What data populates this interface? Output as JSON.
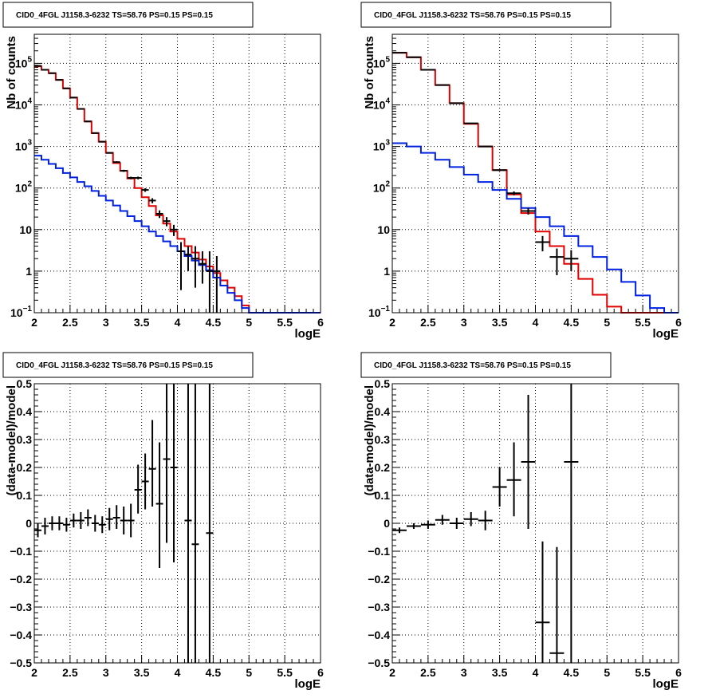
{
  "chart_data": [
    {
      "type": "line",
      "title": "CID0_4FGL J1158.3-6232 TS=58.76 PS=0.15 PS=0.15",
      "xlabel": "logE",
      "ylabel": "Nb of counts",
      "xlim": [
        2,
        6
      ],
      "ylim": [
        0.1,
        500000
      ],
      "yscale": "log",
      "grid": true,
      "xticks": [
        "2",
        "2.5",
        "3",
        "3.5",
        "4",
        "4.5",
        "5",
        "5.5",
        "6"
      ],
      "yticks": [
        {
          "v": 0.1,
          "base": "10",
          "exp": "−1"
        },
        {
          "v": 1,
          "label": "1"
        },
        {
          "v": 10,
          "label": "10"
        },
        {
          "v": 100,
          "base": "10",
          "exp": "2"
        },
        {
          "v": 1000,
          "base": "10",
          "exp": "3"
        },
        {
          "v": 10000,
          "base": "10",
          "exp": "4"
        },
        {
          "v": 100000,
          "base": "10",
          "exp": "5"
        }
      ],
      "series": [
        {
          "kind": "step",
          "color": "#e00000",
          "edges": [
            2,
            2.1,
            2.2,
            2.3,
            2.4,
            2.5,
            2.6,
            2.7,
            2.8,
            2.9,
            3.0,
            3.1,
            3.2,
            3.3,
            3.4,
            3.5,
            3.6,
            3.7,
            3.8,
            3.9,
            4.0,
            4.1,
            4.2,
            4.3,
            4.4,
            4.5,
            4.6,
            4.7,
            4.8,
            4.9,
            5.0,
            5.1,
            5.2,
            5.3,
            5.4,
            5.5,
            5.6,
            5.7,
            5.8,
            5.9,
            6.0
          ],
          "values": [
            85000,
            70000,
            58000,
            40000,
            25000,
            15000,
            8000,
            4000,
            2100,
            1300,
            700,
            400,
            260,
            170,
            100,
            60,
            37,
            22,
            14,
            9,
            6,
            4,
            2.8,
            1.9,
            1.3,
            0.9,
            0.6,
            0.4,
            0.25,
            0.15,
            0.1,
            0.1,
            0.1,
            0.1,
            0.1,
            0.1,
            0.1,
            0.1,
            0.1,
            0.1
          ]
        },
        {
          "kind": "step",
          "color": "#0020e0",
          "edges": [
            2,
            2.1,
            2.2,
            2.3,
            2.4,
            2.5,
            2.6,
            2.7,
            2.8,
            2.9,
            3.0,
            3.1,
            3.2,
            3.3,
            3.4,
            3.5,
            3.6,
            3.7,
            3.8,
            3.9,
            4.0,
            4.1,
            4.2,
            4.3,
            4.4,
            4.5,
            4.6,
            4.7,
            4.8,
            4.9,
            5.0,
            5.1,
            5.2,
            5.3,
            5.4,
            5.5,
            5.6,
            5.7,
            5.8,
            5.9,
            6.0
          ],
          "values": [
            600,
            480,
            380,
            300,
            230,
            180,
            140,
            110,
            85,
            65,
            50,
            38,
            28,
            21,
            16,
            12,
            9,
            7,
            5.2,
            4,
            3,
            2.3,
            1.8,
            1.4,
            1.05,
            0.7,
            0.45,
            0.3,
            0.2,
            0.13,
            0.1,
            0.1,
            0.1,
            0.1,
            0.1,
            0.1,
            0.1,
            0.1,
            0.1,
            0.1
          ]
        },
        {
          "kind": "errorbar",
          "color": "#000000",
          "halfwidth": 0.05,
          "points": [
            {
              "x": 2.05,
              "y": 87000,
              "lo": 86000,
              "hi": 88000
            },
            {
              "x": 2.15,
              "y": 70000,
              "lo": 69000,
              "hi": 71000
            },
            {
              "x": 2.25,
              "y": 58000,
              "lo": 57000,
              "hi": 59000
            },
            {
              "x": 2.35,
              "y": 40000,
              "lo": 39500,
              "hi": 40500
            },
            {
              "x": 2.45,
              "y": 25000,
              "lo": 24500,
              "hi": 25500
            },
            {
              "x": 2.55,
              "y": 15000,
              "lo": 14700,
              "hi": 15300
            },
            {
              "x": 2.65,
              "y": 8000,
              "lo": 7800,
              "hi": 8200
            },
            {
              "x": 2.75,
              "y": 4000,
              "lo": 3900,
              "hi": 4100
            },
            {
              "x": 2.85,
              "y": 2100,
              "lo": 2050,
              "hi": 2150
            },
            {
              "x": 2.95,
              "y": 1300,
              "lo": 1260,
              "hi": 1340
            },
            {
              "x": 3.05,
              "y": 700,
              "lo": 675,
              "hi": 725
            },
            {
              "x": 3.15,
              "y": 420,
              "lo": 400,
              "hi": 440
            },
            {
              "x": 3.25,
              "y": 260,
              "lo": 245,
              "hi": 275
            },
            {
              "x": 3.35,
              "y": 175,
              "lo": 163,
              "hi": 187
            },
            {
              "x": 3.45,
              "y": 175,
              "lo": 162,
              "hi": 188
            },
            {
              "x": 3.55,
              "y": 90,
              "lo": 81,
              "hi": 99
            },
            {
              "x": 3.65,
              "y": 50,
              "lo": 43,
              "hi": 57
            },
            {
              "x": 3.75,
              "y": 24,
              "lo": 19,
              "hi": 29
            },
            {
              "x": 3.85,
              "y": 16,
              "lo": 12,
              "hi": 20
            },
            {
              "x": 3.95,
              "y": 10,
              "lo": 7,
              "hi": 13
            },
            {
              "x": 4.05,
              "y": 3,
              "lo": 0.35,
              "hi": 5
            },
            {
              "x": 4.15,
              "y": 2.5,
              "lo": 1,
              "hi": 4
            },
            {
              "x": 4.25,
              "y": 2,
              "lo": 0.4,
              "hi": 4
            },
            {
              "x": 4.35,
              "y": 1.5,
              "lo": 0.5,
              "hi": 3
            },
            {
              "x": 4.45,
              "y": 1,
              "lo": 0.1,
              "hi": 3
            },
            {
              "x": 4.55,
              "y": 1,
              "lo": 0.1,
              "hi": 2.3
            }
          ]
        }
      ]
    },
    {
      "type": "line",
      "title": "CID0_4FGL J1158.3-6232 TS=58.76 PS=0.15 PS=0.15",
      "xlabel": "logE",
      "ylabel": "Nb of counts",
      "xlim": [
        2,
        6
      ],
      "ylim": [
        0.1,
        500000
      ],
      "yscale": "log",
      "grid": true,
      "xticks": [
        "2",
        "2.5",
        "3",
        "3.5",
        "4",
        "4.5",
        "5",
        "5.5",
        "6"
      ],
      "yticks": [
        {
          "v": 0.1,
          "base": "10",
          "exp": "−1"
        },
        {
          "v": 1,
          "label": "1"
        },
        {
          "v": 10,
          "label": "10"
        },
        {
          "v": 100,
          "base": "10",
          "exp": "2"
        },
        {
          "v": 1000,
          "base": "10",
          "exp": "3"
        },
        {
          "v": 10000,
          "base": "10",
          "exp": "4"
        },
        {
          "v": 100000,
          "base": "10",
          "exp": "5"
        }
      ],
      "series": [
        {
          "kind": "step",
          "color": "#e00000",
          "edges": [
            2,
            2.2,
            2.4,
            2.6,
            2.8,
            3.0,
            3.2,
            3.4,
            3.6,
            3.8,
            4.0,
            4.2,
            4.4,
            4.6,
            4.8,
            5.0,
            5.2,
            5.4,
            5.6,
            5.8,
            6.0
          ],
          "values": [
            180000,
            140000,
            70000,
            30000,
            11000,
            3500,
            1000,
            270,
            70,
            25,
            9,
            4,
            1.5,
            0.65,
            0.27,
            0.14,
            0.1,
            0.1,
            0.1,
            0.1
          ]
        },
        {
          "kind": "step",
          "color": "#0020e0",
          "edges": [
            2,
            2.2,
            2.4,
            2.6,
            2.8,
            3.0,
            3.2,
            3.4,
            3.6,
            3.8,
            4.0,
            4.2,
            4.4,
            4.6,
            4.8,
            5.0,
            5.2,
            5.4,
            5.6,
            5.8,
            6.0
          ],
          "values": [
            1200,
            1000,
            700,
            480,
            320,
            210,
            140,
            90,
            55,
            33,
            20,
            12,
            7,
            4,
            2.2,
            1.1,
            0.55,
            0.26,
            0.13,
            0.1
          ]
        },
        {
          "kind": "errorbar",
          "color": "#000000",
          "halfwidth": 0.1,
          "points": [
            {
              "x": 2.1,
              "y": 180000,
              "lo": 179000,
              "hi": 181000
            },
            {
              "x": 2.3,
              "y": 140000,
              "lo": 139000,
              "hi": 141000
            },
            {
              "x": 2.5,
              "y": 70000,
              "lo": 69500,
              "hi": 70500
            },
            {
              "x": 2.7,
              "y": 30000,
              "lo": 29700,
              "hi": 30300
            },
            {
              "x": 2.9,
              "y": 11000,
              "lo": 10900,
              "hi": 11100
            },
            {
              "x": 3.1,
              "y": 3600,
              "lo": 3550,
              "hi": 3650
            },
            {
              "x": 3.3,
              "y": 1000,
              "lo": 970,
              "hi": 1030
            },
            {
              "x": 3.5,
              "y": 270,
              "lo": 255,
              "hi": 285
            },
            {
              "x": 3.7,
              "y": 75,
              "lo": 67,
              "hi": 83
            },
            {
              "x": 3.9,
              "y": 28,
              "lo": 23,
              "hi": 33
            },
            {
              "x": 4.1,
              "y": 5,
              "lo": 3,
              "hi": 7
            },
            {
              "x": 4.3,
              "y": 2.2,
              "lo": 0.8,
              "hi": 3.5
            },
            {
              "x": 4.5,
              "y": 2,
              "lo": 1,
              "hi": 3.2
            }
          ]
        }
      ]
    },
    {
      "type": "scatter",
      "title": "CID0_4FGL J1158.3-6232 TS=58.76 PS=0.15 PS=0.15",
      "xlabel": "logE",
      "ylabel": "(data-model)/model",
      "xlim": [
        2,
        6
      ],
      "ylim": [
        -0.5,
        0.5
      ],
      "yscale": "linear",
      "grid": true,
      "xticks": [
        "2",
        "2.5",
        "3",
        "3.5",
        "4",
        "4.5",
        "5",
        "5.5",
        "6"
      ],
      "yticks": [
        {
          "v": -0.5,
          "label": "−0.5"
        },
        {
          "v": -0.4,
          "label": "−0.4"
        },
        {
          "v": -0.3,
          "label": "−0.3"
        },
        {
          "v": -0.2,
          "label": "−0.2"
        },
        {
          "v": -0.1,
          "label": "−0.1"
        },
        {
          "v": 0,
          "label": "0"
        },
        {
          "v": 0.1,
          "label": "0.1"
        },
        {
          "v": 0.2,
          "label": "0.2"
        },
        {
          "v": 0.3,
          "label": "0.3"
        },
        {
          "v": 0.4,
          "label": "0.4"
        },
        {
          "v": 0.5,
          "label": "0.5"
        }
      ],
      "series": [
        {
          "kind": "errorbar",
          "color": "#000000",
          "halfwidth": 0.05,
          "points": [
            {
              "x": 2.05,
              "y": -0.025,
              "lo": -0.05,
              "hi": 0.0
            },
            {
              "x": 2.15,
              "y": -0.01,
              "lo": -0.04,
              "hi": 0.02
            },
            {
              "x": 2.25,
              "y": 0.0,
              "lo": -0.025,
              "hi": 0.025
            },
            {
              "x": 2.35,
              "y": 0.0,
              "lo": -0.025,
              "hi": 0.025
            },
            {
              "x": 2.45,
              "y": -0.005,
              "lo": -0.03,
              "hi": 0.02
            },
            {
              "x": 2.55,
              "y": 0.01,
              "lo": -0.015,
              "hi": 0.035
            },
            {
              "x": 2.65,
              "y": 0.01,
              "lo": -0.02,
              "hi": 0.04
            },
            {
              "x": 2.75,
              "y": 0.02,
              "lo": -0.01,
              "hi": 0.05
            },
            {
              "x": 2.85,
              "y": 0.0,
              "lo": -0.03,
              "hi": 0.03
            },
            {
              "x": 2.95,
              "y": -0.005,
              "lo": -0.035,
              "hi": 0.025
            },
            {
              "x": 3.05,
              "y": 0.015,
              "lo": -0.025,
              "hi": 0.055
            },
            {
              "x": 3.15,
              "y": 0.02,
              "lo": -0.02,
              "hi": 0.065
            },
            {
              "x": 3.25,
              "y": 0.01,
              "lo": -0.04,
              "hi": 0.06
            },
            {
              "x": 3.35,
              "y": 0.01,
              "lo": -0.05,
              "hi": 0.07
            },
            {
              "x": 3.45,
              "y": 0.12,
              "lo": 0.035,
              "hi": 0.21
            },
            {
              "x": 3.55,
              "y": 0.15,
              "lo": 0.05,
              "hi": 0.25
            },
            {
              "x": 3.65,
              "y": 0.195,
              "lo": 0.06,
              "hi": 0.37
            },
            {
              "x": 3.75,
              "y": 0.07,
              "lo": -0.16,
              "hi": 0.29
            },
            {
              "x": 3.85,
              "y": 0.23,
              "lo": -0.07,
              "hi": 0.5
            },
            {
              "x": 3.95,
              "y": 0.2,
              "lo": -0.14,
              "hi": 0.5
            },
            {
              "x": 4.15,
              "y": 0.01,
              "lo": -0.5,
              "hi": 0.5
            },
            {
              "x": 4.25,
              "y": -0.075,
              "lo": -0.5,
              "hi": 0.5
            },
            {
              "x": 4.45,
              "y": -0.035,
              "lo": -0.5,
              "hi": 0.5
            }
          ]
        }
      ]
    },
    {
      "type": "scatter",
      "title": "CID0_4FGL J1158.3-6232 TS=58.76 PS=0.15 PS=0.15",
      "xlabel": "logE",
      "ylabel": "(data-model)/model",
      "xlim": [
        2,
        6
      ],
      "ylim": [
        -0.5,
        0.5
      ],
      "yscale": "linear",
      "grid": true,
      "xticks": [
        "2",
        "2.5",
        "3",
        "3.5",
        "4",
        "4.5",
        "5",
        "5.5",
        "6"
      ],
      "yticks": [
        {
          "v": -0.5,
          "label": "−0.5"
        },
        {
          "v": -0.4,
          "label": "−0.4"
        },
        {
          "v": -0.3,
          "label": "−0.3"
        },
        {
          "v": -0.2,
          "label": "−0.2"
        },
        {
          "v": -0.1,
          "label": "−0.1"
        },
        {
          "v": 0,
          "label": "0"
        },
        {
          "v": 0.1,
          "label": "0.1"
        },
        {
          "v": 0.2,
          "label": "0.2"
        },
        {
          "v": 0.3,
          "label": "0.3"
        },
        {
          "v": 0.4,
          "label": "0.4"
        },
        {
          "v": 0.5,
          "label": "0.5"
        }
      ],
      "series": [
        {
          "kind": "errorbar",
          "color": "#000000",
          "halfwidth": 0.1,
          "points": [
            {
              "x": 2.1,
              "y": -0.025,
              "lo": -0.035,
              "hi": -0.015
            },
            {
              "x": 2.3,
              "y": -0.01,
              "lo": -0.02,
              "hi": 0.0
            },
            {
              "x": 2.5,
              "y": -0.005,
              "lo": -0.02,
              "hi": 0.01
            },
            {
              "x": 2.7,
              "y": 0.012,
              "lo": -0.005,
              "hi": 0.03
            },
            {
              "x": 2.9,
              "y": 0.0,
              "lo": -0.02,
              "hi": 0.02
            },
            {
              "x": 3.1,
              "y": 0.015,
              "lo": -0.01,
              "hi": 0.04
            },
            {
              "x": 3.3,
              "y": 0.01,
              "lo": -0.025,
              "hi": 0.045
            },
            {
              "x": 3.5,
              "y": 0.13,
              "lo": 0.06,
              "hi": 0.2
            },
            {
              "x": 3.7,
              "y": 0.155,
              "lo": 0.025,
              "hi": 0.29
            },
            {
              "x": 3.9,
              "y": 0.22,
              "lo": -0.02,
              "hi": 0.46
            },
            {
              "x": 4.1,
              "y": -0.355,
              "lo": -0.5,
              "hi": -0.065
            },
            {
              "x": 4.3,
              "y": -0.465,
              "lo": -0.5,
              "hi": -0.085
            },
            {
              "x": 4.5,
              "y": 0.22,
              "lo": -0.5,
              "hi": 0.5
            }
          ]
        }
      ]
    }
  ]
}
